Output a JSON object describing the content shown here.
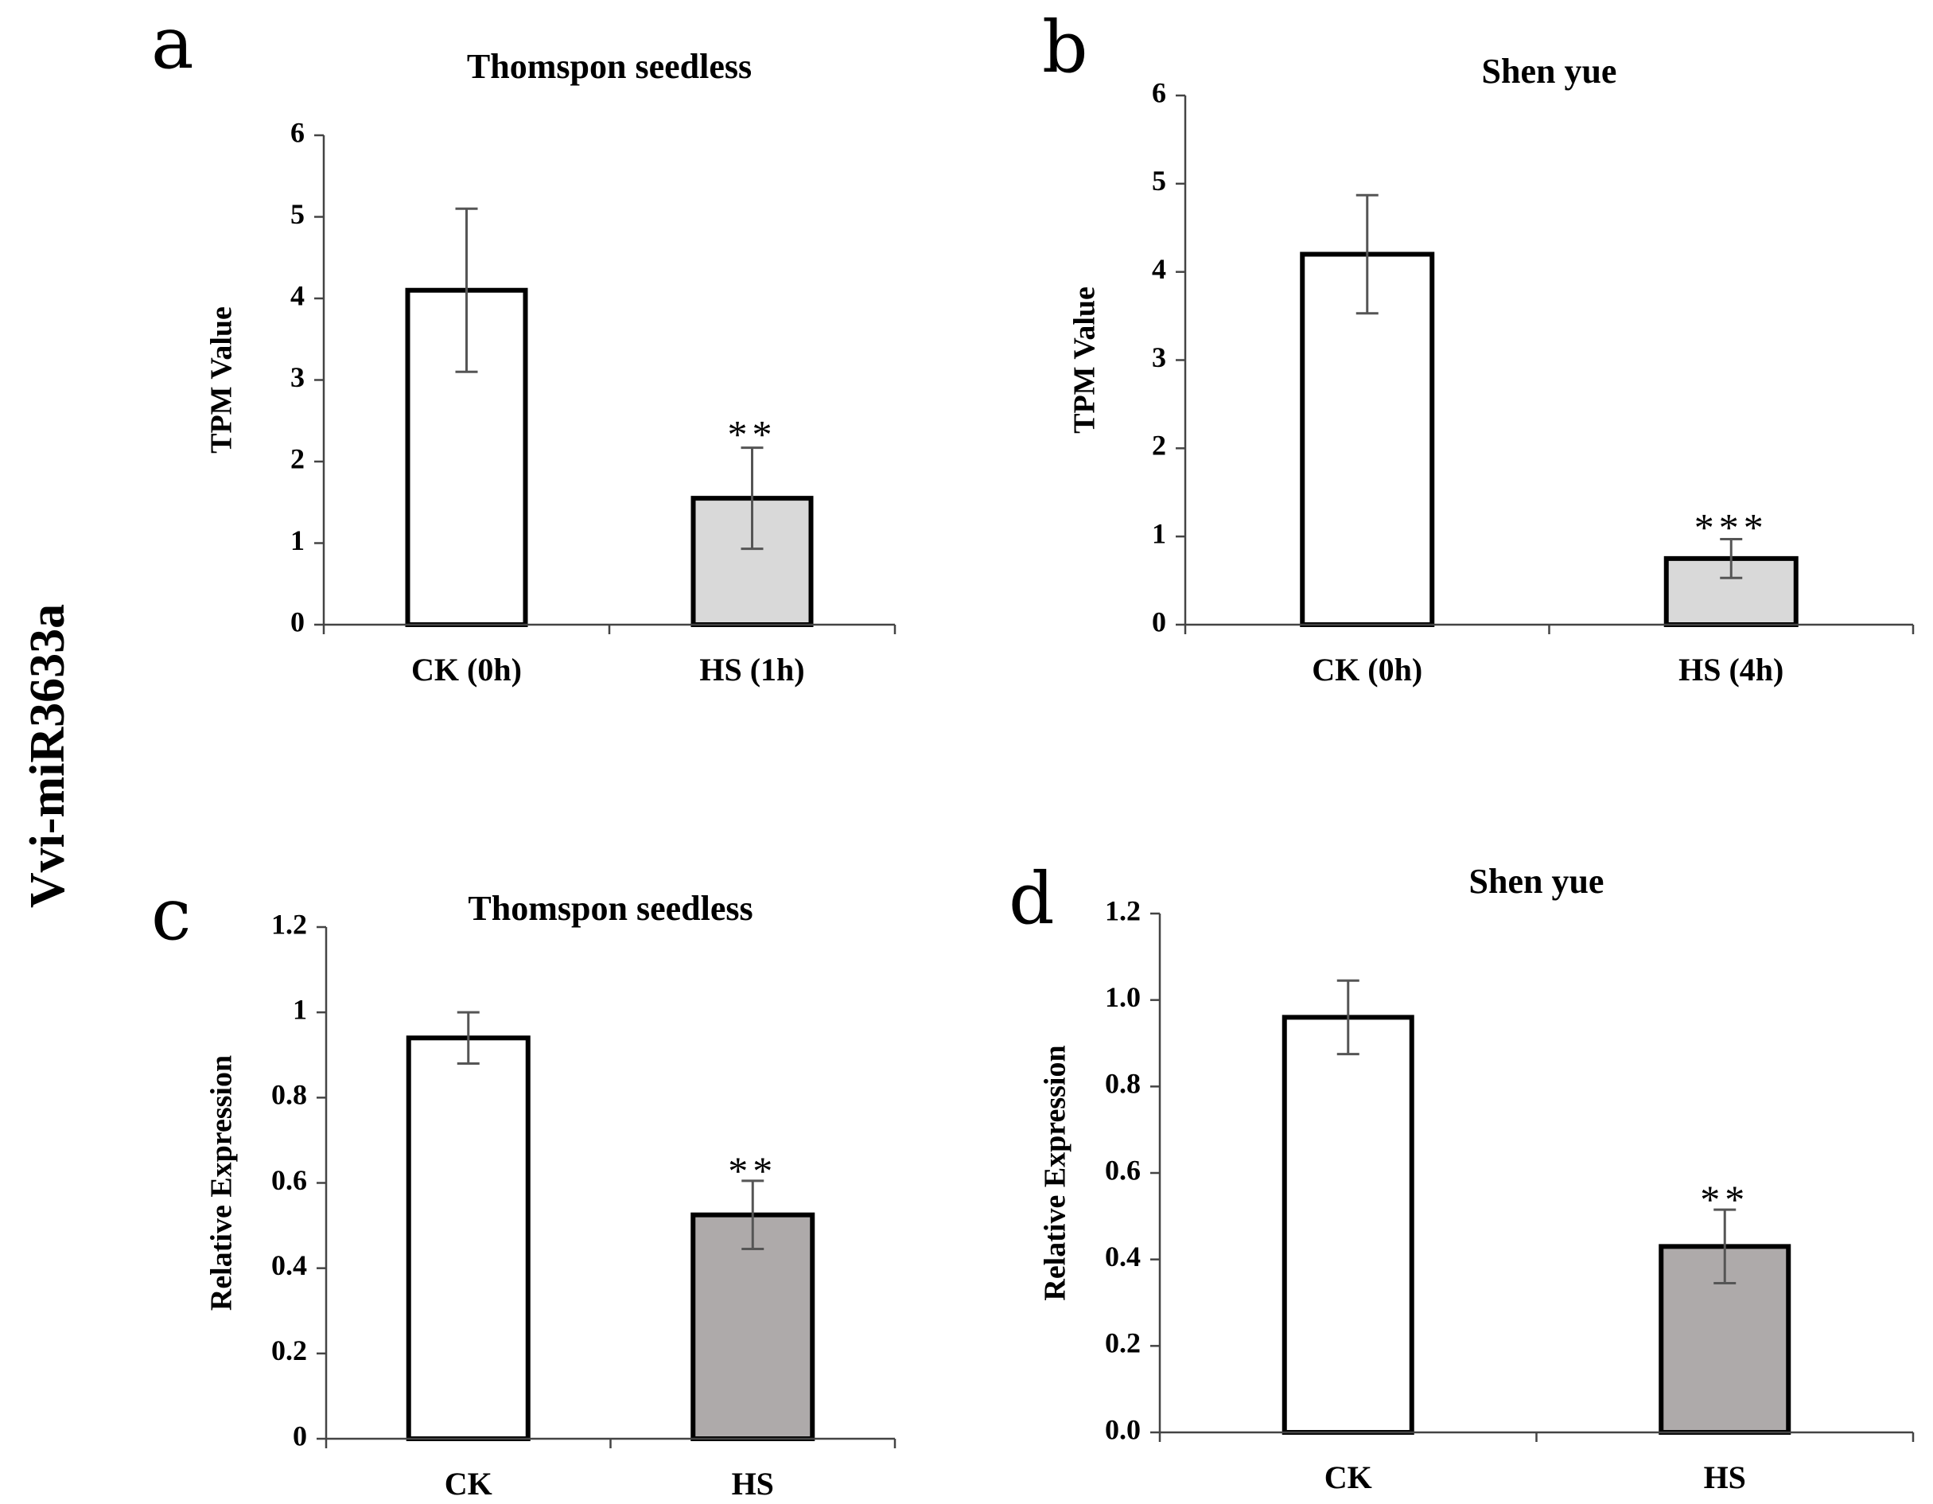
{
  "figure": {
    "side_label": "Vvi-miR3633a"
  },
  "chart_data": [
    {
      "panel": "a",
      "type": "bar",
      "title": "Thomspon  seedless",
      "xlabel": "",
      "ylabel": "TPM  Value",
      "categories": [
        "CK (0h)",
        "HS (1h)"
      ],
      "values": [
        4.1,
        1.55
      ],
      "errors": [
        1.0,
        0.62
      ],
      "significance": [
        "",
        "**"
      ],
      "ylim": [
        0,
        6
      ],
      "yticks": [
        "0",
        "1",
        "2",
        "3",
        "4",
        "5",
        "6"
      ],
      "bar_colors": [
        "#ffffff",
        "#d9d9d9"
      ],
      "grid": false
    },
    {
      "panel": "b",
      "type": "bar",
      "title": "Shen yue",
      "xlabel": "",
      "ylabel": "TPM  Value",
      "categories": [
        "CK (0h)",
        "HS (4h)"
      ],
      "values": [
        4.2,
        0.75
      ],
      "errors": [
        0.67,
        0.22
      ],
      "significance": [
        "",
        "***"
      ],
      "ylim": [
        0,
        6
      ],
      "yticks": [
        "0",
        "1",
        "2",
        "3",
        "4",
        "5",
        "6"
      ],
      "bar_colors": [
        "#ffffff",
        "#d9d9d9"
      ],
      "grid": false
    },
    {
      "panel": "c",
      "type": "bar",
      "title": "Thomspon  seedless",
      "xlabel": "",
      "ylabel": "Relative Expression",
      "categories": [
        "CK",
        "HS"
      ],
      "values": [
        0.94,
        0.525
      ],
      "errors": [
        0.06,
        0.08
      ],
      "significance": [
        "",
        "**"
      ],
      "ylim": [
        0,
        1.2
      ],
      "yticks": [
        "0",
        "0.2",
        "0.4",
        "0.6",
        "0.8",
        "1",
        "1.2"
      ],
      "bar_colors": [
        "#ffffff",
        "#aeaaaa"
      ],
      "grid": false
    },
    {
      "panel": "d",
      "type": "bar",
      "title": "Shen yue",
      "xlabel": "",
      "ylabel": "Relative Expression",
      "categories": [
        "CK",
        "HS"
      ],
      "values": [
        0.96,
        0.43
      ],
      "errors": [
        0.085,
        0.085
      ],
      "significance": [
        "",
        "**"
      ],
      "ylim": [
        0,
        1.2
      ],
      "yticks": [
        "0.0",
        "0.2",
        "0.4",
        "0.6",
        "0.8",
        "1.0",
        "1.2"
      ],
      "bar_colors": [
        "#ffffff",
        "#aeaaaa"
      ],
      "grid": false
    }
  ]
}
